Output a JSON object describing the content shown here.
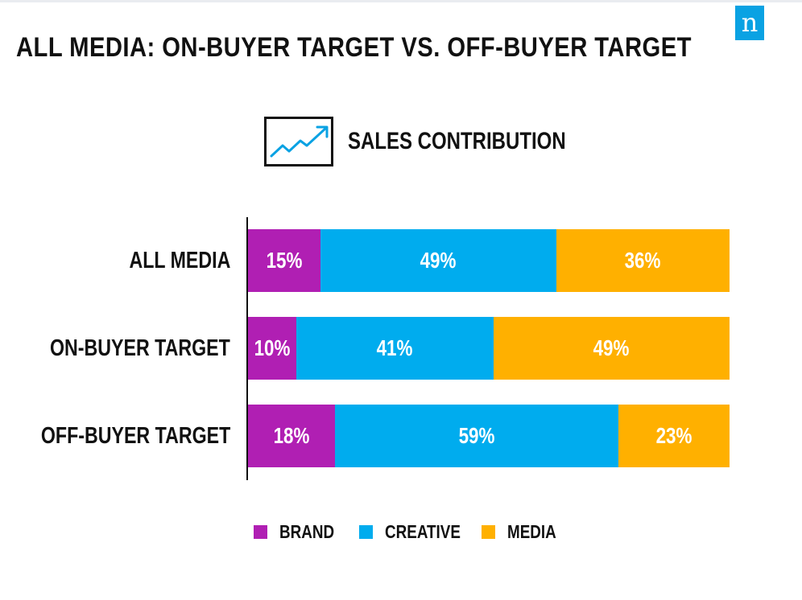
{
  "header": {
    "title": "ALL MEDIA: ON-BUYER TARGET VS. OFF-BUYER TARGET",
    "subtitle": "SALES CONTRIBUTION",
    "logo_letter": "n",
    "logo_color": "#0aa2e3"
  },
  "chart_data": {
    "type": "bar",
    "orientation": "horizontal",
    "stacked": true,
    "percent": true,
    "title": "SALES CONTRIBUTION",
    "categories": [
      "ALL MEDIA",
      "ON-BUYER TARGET",
      "OFF-BUYER TARGET"
    ],
    "series": [
      {
        "name": "BRAND",
        "color": "#b01fb3",
        "values": [
          15,
          10,
          18
        ]
      },
      {
        "name": "CREATIVE",
        "color": "#00acee",
        "values": [
          49,
          41,
          59
        ]
      },
      {
        "name": "MEDIA",
        "color": "#ffb000",
        "values": [
          36,
          49,
          23
        ]
      }
    ],
    "value_labels": [
      [
        "15%",
        "49%",
        "36%"
      ],
      [
        "10%",
        "41%",
        "49%"
      ],
      [
        "18%",
        "59%",
        "23%"
      ]
    ],
    "xlim": [
      0,
      100
    ],
    "legend_position": "bottom",
    "grid": false
  }
}
